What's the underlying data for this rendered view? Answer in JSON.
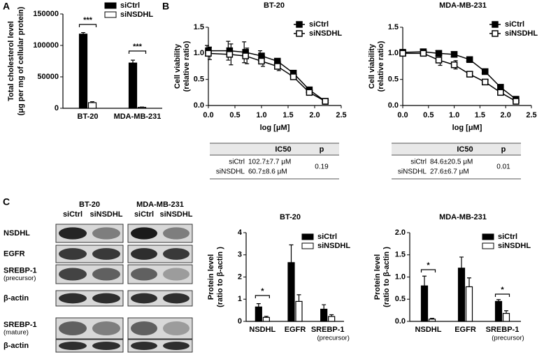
{
  "panel_labels": [
    "A",
    "B",
    "C"
  ],
  "chart_data": [
    {
      "type": "bar",
      "ylabel": [
        "Total cholesterol level",
        "(μg per mg of cellular protein)"
      ],
      "categories": [
        "BT-20",
        "MDA-MB-231"
      ],
      "series": [
        {
          "name": "siCtrl",
          "color": "#000000",
          "values": [
            118000,
            72000
          ],
          "errors": [
            2500,
            4500
          ]
        },
        {
          "name": "siNSDHL",
          "color": "#ffffff",
          "values": [
            9000,
            1500
          ],
          "errors": [
            1500,
            500
          ]
        }
      ],
      "ylim": [
        0,
        150000
      ],
      "yticks": [
        0,
        50000,
        100000,
        150000
      ],
      "legend": "upper right",
      "annotations": [
        "***",
        "***"
      ]
    },
    {
      "type": "line",
      "title": "BT-20",
      "xlabel": "log [μM]",
      "ylabel": [
        "Cell viability",
        "(relative ratio)"
      ],
      "x": [
        0,
        0.4,
        0.7,
        1.0,
        1.3,
        1.6,
        1.9,
        2.2
      ],
      "series": [
        {
          "name": "siCtrl",
          "color": "#000000",
          "marker_fill": "#000000",
          "values": [
            1.05,
            1.05,
            1.02,
            0.95,
            0.85,
            0.62,
            0.3,
            0.08
          ],
          "errors": [
            0.1,
            0.18,
            0.2,
            0.1,
            0.05,
            0.05,
            0.05,
            0.02
          ]
        },
        {
          "name": "siNSDHL",
          "color": "#000000",
          "marker_fill": "#ffffff",
          "values": [
            1.0,
            0.98,
            0.95,
            0.85,
            0.75,
            0.55,
            0.25,
            0.08
          ],
          "errors": [
            0.12,
            0.2,
            0.15,
            0.1,
            0.08,
            0.04,
            0.04,
            0.02
          ]
        }
      ],
      "xlim": [
        0,
        2.5
      ],
      "xticks": [
        {
          "value": 0,
          "label": "0.0"
        },
        0.5,
        {
          "value": 1,
          "label": "1.0"
        },
        1.5,
        {
          "value": 2,
          "label": "2.0"
        },
        2.5
      ],
      "ylim": [
        0,
        1.5
      ],
      "yticks": [
        {
          "value": 0,
          "label": "0.0"
        },
        0.5,
        {
          "value": 1,
          "label": "1.0"
        },
        1.5
      ],
      "legend": "upper right"
    },
    {
      "type": "line",
      "title": "MDA-MB-231",
      "xlabel": "log [μM]",
      "ylabel": [
        "Cell viability",
        "(relative ratio)"
      ],
      "x": [
        0,
        0.4,
        0.7,
        1.0,
        1.3,
        1.6,
        1.9,
        2.2
      ],
      "series": [
        {
          "name": "siCtrl",
          "color": "#000000",
          "marker_fill": "#000000",
          "values": [
            1.02,
            1.03,
            1.0,
            0.98,
            0.88,
            0.65,
            0.35,
            0.12
          ],
          "errors": [
            0.03,
            0.05,
            0.05,
            0.05,
            0.03,
            0.03,
            0.03,
            0.02
          ]
        },
        {
          "name": "siNSDHL",
          "color": "#000000",
          "marker_fill": "#ffffff",
          "values": [
            1.0,
            1.0,
            0.87,
            0.78,
            0.6,
            0.45,
            0.25,
            0.08
          ],
          "errors": [
            0.05,
            0.05,
            0.1,
            0.08,
            0.05,
            0.04,
            0.03,
            0.02
          ]
        }
      ],
      "xlim": [
        0,
        2.5
      ],
      "xticks": [
        {
          "value": 0,
          "label": "0.0"
        },
        0.5,
        {
          "value": 1,
          "label": "1.0"
        },
        1.5,
        {
          "value": 2,
          "label": "2.0"
        },
        2.5
      ],
      "ylim": [
        0,
        1.5
      ],
      "yticks": [
        {
          "value": 0,
          "label": "0.0"
        },
        0.5,
        {
          "value": 1,
          "label": "1.0"
        },
        1.5
      ],
      "legend": "upper right"
    },
    {
      "type": "bar",
      "title": "BT-20",
      "ylabel": [
        "Protein level",
        "(ratio to β-actin )"
      ],
      "categories": [
        "NSDHL",
        "EGFR",
        "SREBP-1"
      ],
      "category_sublabels": [
        null,
        null,
        "(precursor)"
      ],
      "series": [
        {
          "name": "siCtrl",
          "color": "#000000",
          "values": [
            0.65,
            2.65,
            0.55
          ],
          "errors": [
            0.15,
            0.8,
            0.2
          ]
        },
        {
          "name": "siNSDHL",
          "color": "#ffffff",
          "values": [
            0.18,
            0.9,
            0.22
          ],
          "errors": [
            0.05,
            0.3,
            0.08
          ]
        }
      ],
      "ylim": [
        0,
        4
      ],
      "yticks": [
        0,
        1,
        2,
        3,
        4
      ],
      "legend": "upper right",
      "annotations": [
        "*"
      ]
    },
    {
      "type": "bar",
      "title": "MDA-MB-231",
      "ylabel": [
        "Protein level",
        "(ratio to β-actin )"
      ],
      "categories": [
        "NSDHL",
        "EGFR",
        "SREBP-1"
      ],
      "category_sublabels": [
        null,
        null,
        "(precursor)"
      ],
      "series": [
        {
          "name": "siCtrl",
          "color": "#000000",
          "values": [
            0.8,
            1.2,
            0.45
          ],
          "errors": [
            0.22,
            0.25,
            0.04
          ]
        },
        {
          "name": "siNSDHL",
          "color": "#ffffff",
          "values": [
            0.05,
            0.78,
            0.18
          ],
          "errors": [
            0.02,
            0.2,
            0.06
          ]
        }
      ],
      "ylim": [
        0,
        2.0
      ],
      "yticks": [
        {
          "value": 0,
          "label": "0.0"
        },
        0.5,
        {
          "value": 1,
          "label": "1.0"
        },
        1.5,
        {
          "value": 2,
          "label": "2.0"
        }
      ],
      "legend": "upper right",
      "annotations": [
        "*",
        "*"
      ]
    }
  ],
  "tables": [
    {
      "header": [
        "IC50",
        "p"
      ],
      "rows": [
        [
          "siCtrl",
          "102.7±7.7 μM"
        ],
        [
          "siNSDHL",
          "60.7±8.6 μM"
        ]
      ],
      "p": "0.19"
    },
    {
      "header": [
        "IC50",
        "p"
      ],
      "rows": [
        [
          "siCtrl",
          "84.6±20.5 μM"
        ],
        [
          "siNSDHL",
          "27.6±6.7 μM"
        ]
      ],
      "p": "0.01"
    }
  ],
  "blots": {
    "groups": [
      {
        "title": "BT-20",
        "lanes": [
          "siCtrl",
          "siNSDHL"
        ]
      },
      {
        "title": "MDA-MB-231",
        "lanes": [
          "siCtrl",
          "siNSDHL"
        ]
      }
    ],
    "rows": [
      [
        "NSDHL"
      ],
      [
        "EGFR"
      ],
      [
        "SREBP-1",
        "(precursor)"
      ],
      [
        "β-actin"
      ],
      [
        "SREBP-1",
        "(mature)"
      ],
      [
        "β-actin"
      ]
    ]
  }
}
